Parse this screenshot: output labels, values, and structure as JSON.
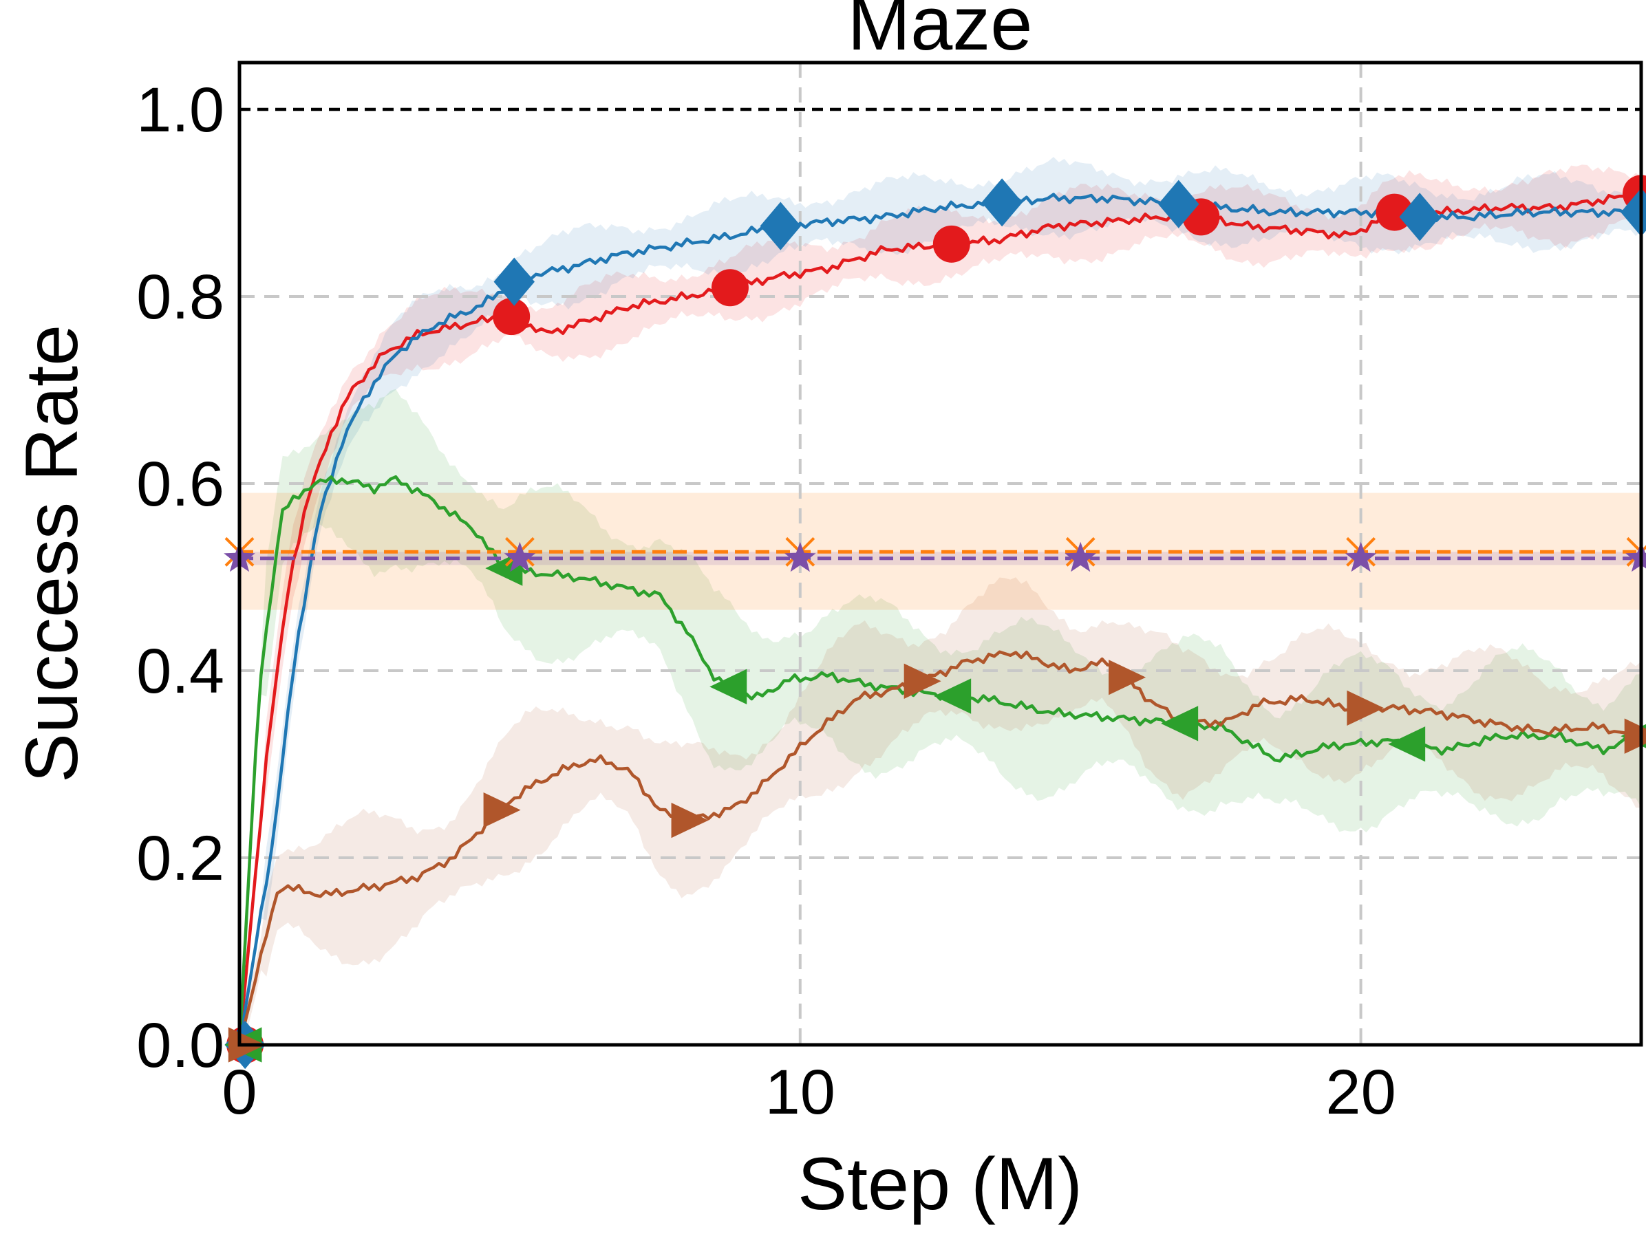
{
  "chart_data": {
    "type": "line",
    "title": "Maze",
    "xlabel": "Step (M)",
    "ylabel": "Success Rate",
    "xlim": [
      0,
      25
    ],
    "ylim": [
      0,
      1.05
    ],
    "xticks": [
      0,
      10,
      20
    ],
    "yticks": [
      0.0,
      0.2,
      0.4,
      0.6,
      0.8,
      1.0
    ],
    "xtick_labels": [
      "0",
      "10",
      "20"
    ],
    "ytick_labels": [
      "0.0",
      "0.2",
      "0.4",
      "0.6",
      "0.8",
      "1.0"
    ],
    "grid": true,
    "reference_line": {
      "y": 1.0,
      "color": "#000000",
      "style": "dashed"
    },
    "series": [
      {
        "name": "red-circle",
        "color": "#e31a1c",
        "marker": "circle",
        "points": [
          [
            0,
            0
          ],
          [
            0.5,
            0.32
          ],
          [
            0.9,
            0.5
          ],
          [
            1.2,
            0.58
          ],
          [
            1.6,
            0.65
          ],
          [
            2.0,
            0.7
          ],
          [
            2.6,
            0.74
          ],
          [
            3.2,
            0.76
          ],
          [
            4.0,
            0.77
          ],
          [
            4.8,
            0.78
          ],
          [
            5.5,
            0.76
          ],
          [
            6.0,
            0.77
          ],
          [
            7.0,
            0.79
          ],
          [
            8.0,
            0.8
          ],
          [
            8.8,
            0.81
          ],
          [
            9.5,
            0.82
          ],
          [
            10.5,
            0.83
          ],
          [
            11.5,
            0.85
          ],
          [
            12.5,
            0.855
          ],
          [
            13.5,
            0.86
          ],
          [
            14.5,
            0.875
          ],
          [
            15.5,
            0.88
          ],
          [
            16.5,
            0.885
          ],
          [
            17.2,
            0.885
          ],
          [
            18.0,
            0.875
          ],
          [
            19.0,
            0.87
          ],
          [
            19.8,
            0.865
          ],
          [
            20.6,
            0.89
          ],
          [
            21.5,
            0.89
          ],
          [
            22.5,
            0.895
          ],
          [
            23.5,
            0.895
          ],
          [
            24.5,
            0.905
          ],
          [
            25,
            0.91
          ]
        ],
        "band": 0.03,
        "marker_x": [
          4.85,
          8.75,
          12.7,
          17.15,
          20.6,
          25
        ]
      },
      {
        "name": "blue-diamond",
        "color": "#1f77b4",
        "marker": "diamond",
        "points": [
          [
            0,
            0
          ],
          [
            0.6,
            0.22
          ],
          [
            1.0,
            0.42
          ],
          [
            1.4,
            0.56
          ],
          [
            1.8,
            0.64
          ],
          [
            2.2,
            0.69
          ],
          [
            2.8,
            0.74
          ],
          [
            3.5,
            0.77
          ],
          [
            4.3,
            0.79
          ],
          [
            5.0,
            0.82
          ],
          [
            5.8,
            0.83
          ],
          [
            6.8,
            0.845
          ],
          [
            7.8,
            0.855
          ],
          [
            8.8,
            0.865
          ],
          [
            9.6,
            0.875
          ],
          [
            10.5,
            0.88
          ],
          [
            11.5,
            0.885
          ],
          [
            12.5,
            0.895
          ],
          [
            13.5,
            0.9
          ],
          [
            14.5,
            0.905
          ],
          [
            15.5,
            0.905
          ],
          [
            16.5,
            0.9
          ],
          [
            17.5,
            0.895
          ],
          [
            18.5,
            0.89
          ],
          [
            19.5,
            0.89
          ],
          [
            20.3,
            0.89
          ],
          [
            21.0,
            0.885
          ],
          [
            22.0,
            0.885
          ],
          [
            23.0,
            0.89
          ],
          [
            24.0,
            0.89
          ],
          [
            25,
            0.89
          ]
        ],
        "band": 0.03,
        "marker_x": [
          4.9,
          9.65,
          13.6,
          16.75,
          21.05,
          25
        ]
      },
      {
        "name": "green-triangle-left",
        "color": "#2ca02c",
        "marker": "triangle-left",
        "points": [
          [
            0,
            0
          ],
          [
            0.35,
            0.38
          ],
          [
            0.75,
            0.57
          ],
          [
            1.3,
            0.6
          ],
          [
            1.8,
            0.605
          ],
          [
            2.4,
            0.595
          ],
          [
            2.8,
            0.605
          ],
          [
            3.5,
            0.58
          ],
          [
            4.2,
            0.55
          ],
          [
            4.7,
            0.51
          ],
          [
            5.2,
            0.505
          ],
          [
            6.0,
            0.5
          ],
          [
            7.5,
            0.48
          ],
          [
            8.0,
            0.44
          ],
          [
            8.5,
            0.39
          ],
          [
            9.2,
            0.37
          ],
          [
            9.8,
            0.39
          ],
          [
            10.5,
            0.395
          ],
          [
            11.2,
            0.385
          ],
          [
            12.3,
            0.375
          ],
          [
            13.3,
            0.37
          ],
          [
            14.5,
            0.355
          ],
          [
            15.5,
            0.35
          ],
          [
            16.5,
            0.345
          ],
          [
            17.5,
            0.34
          ],
          [
            18.5,
            0.305
          ],
          [
            19.5,
            0.32
          ],
          [
            20.5,
            0.325
          ],
          [
            21.5,
            0.315
          ],
          [
            22.5,
            0.33
          ],
          [
            23.5,
            0.33
          ],
          [
            24.3,
            0.315
          ],
          [
            25,
            0.33
          ]
        ],
        "band": 0.07,
        "marker_x": [
          4.75,
          8.75,
          12.75,
          16.8,
          20.85,
          25
        ]
      },
      {
        "name": "brown-triangle-right",
        "color": "#b0562b",
        "marker": "triangle-right",
        "points": [
          [
            0,
            0
          ],
          [
            0.7,
            0.17
          ],
          [
            1.5,
            0.16
          ],
          [
            2.5,
            0.17
          ],
          [
            3.2,
            0.18
          ],
          [
            3.8,
            0.2
          ],
          [
            4.3,
            0.23
          ],
          [
            4.8,
            0.26
          ],
          [
            5.3,
            0.28
          ],
          [
            6.0,
            0.3
          ],
          [
            6.5,
            0.305
          ],
          [
            7.0,
            0.29
          ],
          [
            7.5,
            0.25
          ],
          [
            8.0,
            0.24
          ],
          [
            8.7,
            0.25
          ],
          [
            9.2,
            0.27
          ],
          [
            9.7,
            0.3
          ],
          [
            10.2,
            0.33
          ],
          [
            11.0,
            0.37
          ],
          [
            12.0,
            0.385
          ],
          [
            13.0,
            0.41
          ],
          [
            13.8,
            0.42
          ],
          [
            14.8,
            0.4
          ],
          [
            15.5,
            0.41
          ],
          [
            16.2,
            0.37
          ],
          [
            16.8,
            0.345
          ],
          [
            17.6,
            0.345
          ],
          [
            18.2,
            0.365
          ],
          [
            19.0,
            0.37
          ],
          [
            19.8,
            0.36
          ],
          [
            20.6,
            0.36
          ],
          [
            21.4,
            0.355
          ],
          [
            22.2,
            0.345
          ],
          [
            23.2,
            0.335
          ],
          [
            24.2,
            0.34
          ],
          [
            25,
            0.33
          ]
        ],
        "band": 0.06,
        "marker_x": [
          4.65,
          8.0,
          12.15,
          15.8,
          20.05,
          25
        ]
      },
      {
        "name": "orange-x",
        "color": "#ff7f0e",
        "marker": "x",
        "constant": 0.527,
        "band_low": 0.465,
        "band_high": 0.59,
        "marker_x": [
          0,
          5,
          10,
          15,
          20,
          25
        ]
      },
      {
        "name": "purple-star",
        "color": "#7b4fa8",
        "marker": "star",
        "constant": 0.52,
        "band_low": 0.513,
        "band_high": 0.527,
        "marker_x": [
          0,
          5,
          10,
          15,
          20,
          25
        ]
      }
    ]
  }
}
